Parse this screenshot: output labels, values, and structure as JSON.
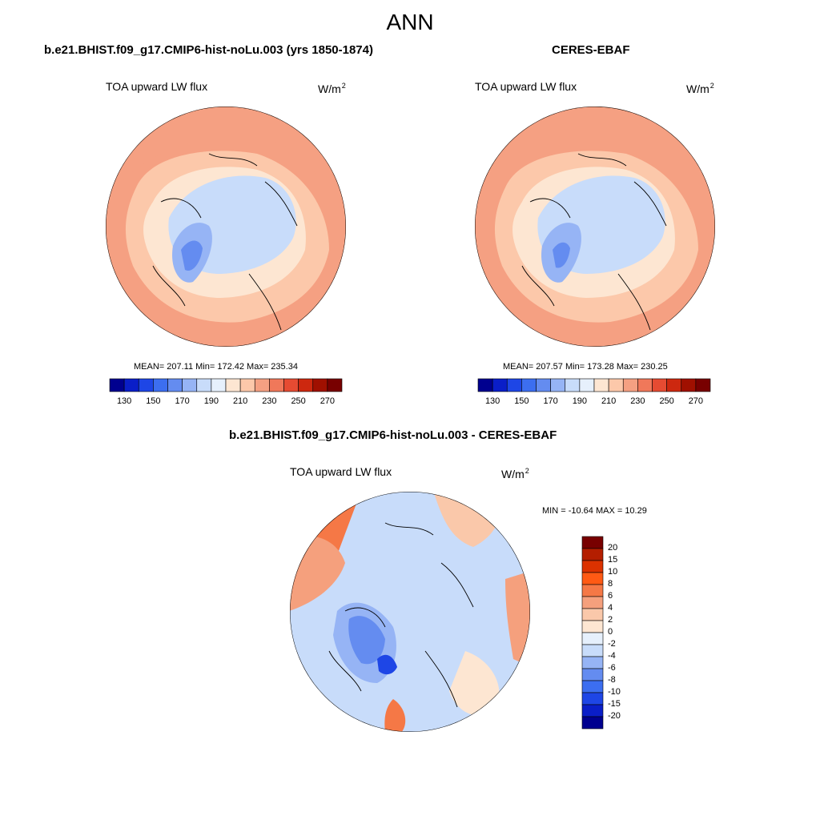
{
  "page": {
    "title": "ANN",
    "variable": "TOA upward LW flux",
    "units_base": "W/m",
    "units_exp": "2"
  },
  "panels": [
    {
      "title": "b.e21.BHIST.f09_g17.CMIP6-hist-noLu.003 (yrs 1850-1874)",
      "stats": "MEAN= 207.11  Min= 172.42  Max= 235.34"
    },
    {
      "title": "CERES-EBAF",
      "stats": "MEAN= 207.57  Min= 173.28  Max= 230.25"
    },
    {
      "title": "b.e21.BHIST.f09_g17.CMIP6-hist-noLu.003 - CERES-EBAF",
      "stats": "MIN = -10.64 MAX =  10.29"
    }
  ],
  "colors": {
    "abs_bins": [
      "#00008f",
      "#0a1ec8",
      "#1e46e6",
      "#3c6ef0",
      "#648cf0",
      "#96b4f5",
      "#c8dcfa",
      "#e6f0fc",
      "#fde6d2",
      "#fcc8aa",
      "#f5a082",
      "#f0785a",
      "#e64b32",
      "#cd280f",
      "#a01000",
      "#780000"
    ],
    "diff_bins": [
      "#780000",
      "#b41e00",
      "#dc3200",
      "#ff5a14",
      "#f57846",
      "#f5a07d",
      "#fac8aa",
      "#fde6d2",
      "#e6f0fc",
      "#c8dcfa",
      "#96b4f5",
      "#648cf0",
      "#3c6ef0",
      "#1e46e6",
      "#0a1ec8",
      "#00008f"
    ]
  },
  "chart_data": [
    {
      "type": "heatmap",
      "projection": "north polar stereographic",
      "title": "b.e21.BHIST.f09_g17.CMIP6-hist-noLu.003 (yrs 1850-1874)",
      "label": "TOA upward LW flux",
      "units": "W/m2",
      "mean": 207.11,
      "min": 172.42,
      "max": 235.34,
      "colorbar_ticks": [
        "130",
        "150",
        "170",
        "190",
        "210",
        "230",
        "250",
        "270"
      ],
      "colorbar_bins": 16
    },
    {
      "type": "heatmap",
      "projection": "north polar stereographic",
      "title": "CERES-EBAF",
      "label": "TOA upward LW flux",
      "units": "W/m2",
      "mean": 207.57,
      "min": 173.28,
      "max": 230.25,
      "colorbar_ticks": [
        "130",
        "150",
        "170",
        "190",
        "210",
        "230",
        "250",
        "270"
      ],
      "colorbar_bins": 16
    },
    {
      "type": "heatmap",
      "projection": "north polar stereographic",
      "title": "b.e21.BHIST.f09_g17.CMIP6-hist-noLu.003 - CERES-EBAF",
      "label": "TOA upward LW flux",
      "units": "W/m2",
      "min": -10.64,
      "max": 10.29,
      "colorbar_ticks": [
        "20",
        "15",
        "10",
        "8",
        "6",
        "4",
        "2",
        "0",
        "-2",
        "-4",
        "-6",
        "-8",
        "-10",
        "-15",
        "-20"
      ],
      "colorbar_bins": 16
    }
  ]
}
